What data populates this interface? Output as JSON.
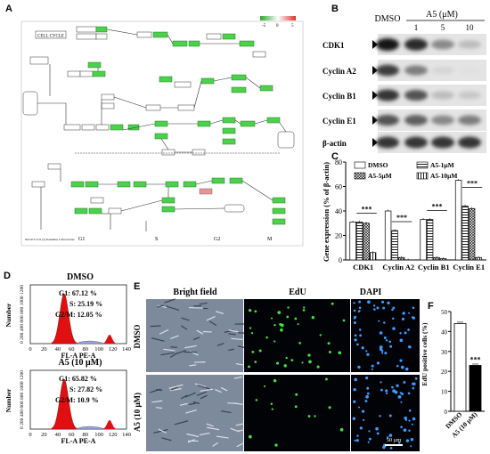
{
  "panels": {
    "A": "A",
    "B": "B",
    "C": "C",
    "D": "D",
    "E": "E",
    "F": "F"
  },
  "kegg": {
    "title": "CELL CYCLE",
    "phases": [
      "G1",
      "S",
      "G2",
      "M"
    ],
    "legend_ticks": [
      "-5",
      "0",
      "5"
    ],
    "footer": "04110 5/1/21\n(c) Kanehisa Laboratories"
  },
  "western": {
    "col_labels": [
      "DMSO",
      "1",
      "5",
      "10"
    ],
    "treatment_label": "A5 (μM)",
    "rows": [
      "CDK1",
      "Cyclin A2",
      "Cyclin B1",
      "Cyclin E1",
      "β-actin"
    ],
    "intensity": [
      [
        1.0,
        0.9,
        0.45,
        0.2
      ],
      [
        0.8,
        0.5,
        0.08,
        0.03
      ],
      [
        0.85,
        0.7,
        0.2,
        0.15
      ],
      [
        0.7,
        0.65,
        0.45,
        0.5
      ],
      [
        0.85,
        0.85,
        0.85,
        0.85
      ]
    ]
  },
  "chart_data": [
    {
      "type": "bar",
      "ylabel": "Gene expression (% of β-actin)",
      "categories": [
        "CDK1",
        "Cyclin A2",
        "Cyclin B1",
        "Cyclin E1"
      ],
      "ylim": [
        0,
        80
      ],
      "yticks": [
        "0",
        "20",
        "40",
        "60",
        "80"
      ],
      "series": [
        {
          "name": "DMSO",
          "values": [
            31,
            40,
            33,
            65
          ],
          "pattern": "white"
        },
        {
          "name": "A5-1μM",
          "values": [
            31,
            24,
            33,
            44
          ],
          "pattern": "hlines"
        },
        {
          "name": "A5-5μM",
          "values": [
            30,
            2,
            2,
            42
          ],
          "pattern": "cross"
        },
        {
          "name": "A5-10μM",
          "values": [
            6,
            0,
            1,
            2
          ],
          "pattern": "vlines"
        }
      ],
      "significance": "***"
    },
    {
      "type": "bar",
      "ylabel": "EdU positive cells (%)",
      "categories": [
        "DMSO",
        "A5 (10 μM)"
      ],
      "values": [
        44,
        23
      ],
      "ylim": [
        0,
        50
      ],
      "yticks": [
        "0",
        "10",
        "20",
        "30",
        "40",
        "50"
      ],
      "significance": "***"
    }
  ],
  "flow": {
    "conditions": [
      {
        "title": "DMSO",
        "g1": "G1: 67.12 %",
        "s": "S: 25.19 %",
        "g2m": "G2/M: 12.05 %"
      },
      {
        "title": "A5 (10 μM)",
        "g1": "G1: 65.82 %",
        "s": "S: 27.82 %",
        "g2m": "G2/M: 10.9 %"
      }
    ],
    "ylabel": "Number",
    "yticks": "0 200 400 600 800 1000 1200",
    "xticks": [
      "0",
      "20",
      "40",
      "60",
      "80",
      "100",
      "120",
      "140"
    ],
    "xlabel": "FL-A PE-A"
  },
  "microscopy": {
    "col_headers": [
      "Bright field",
      "EdU",
      "DAPI"
    ],
    "row_labels": [
      "DMSO",
      "A5 (10 μM)"
    ],
    "scalebar": "50 μm"
  }
}
